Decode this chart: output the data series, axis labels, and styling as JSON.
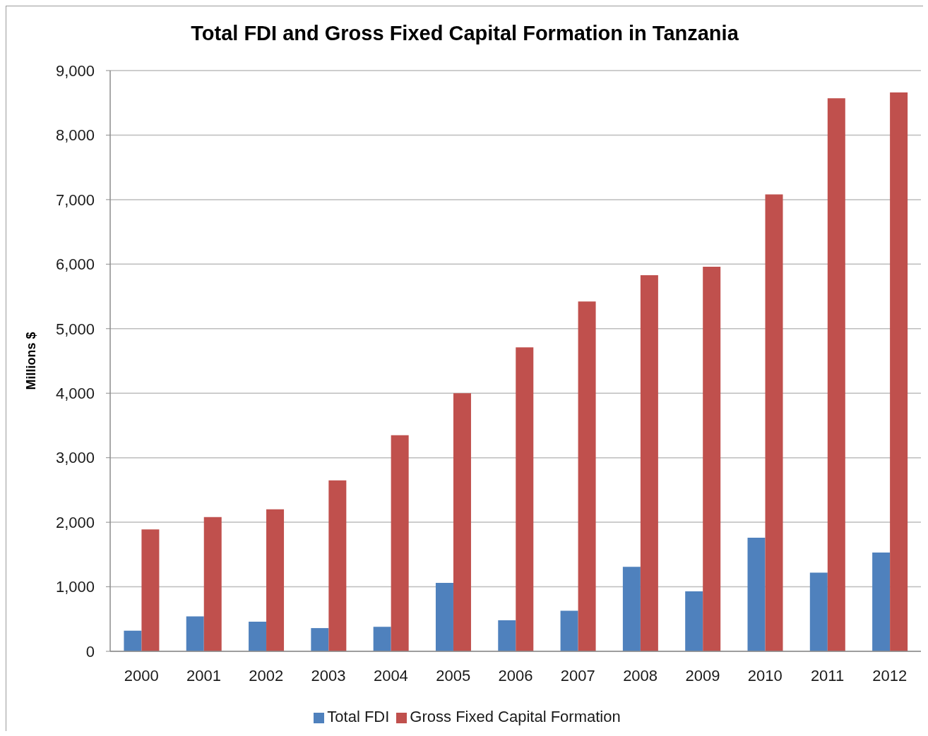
{
  "chart_data": {
    "type": "bar",
    "title": "Total FDI and Gross Fixed Capital Formation in Tanzania",
    "ylabel": "Millions $",
    "categories": [
      "2000",
      "2001",
      "2002",
      "2003",
      "2004",
      "2005",
      "2006",
      "2007",
      "2008",
      "2009",
      "2010",
      "2011",
      "2012"
    ],
    "series": [
      {
        "name": "Total FDI",
        "color": "#4f81bd",
        "values": [
          320,
          540,
          460,
          360,
          380,
          1060,
          480,
          630,
          1310,
          930,
          1760,
          1220,
          1530
        ]
      },
      {
        "name": "Gross Fixed Capital Formation",
        "color": "#c0504d",
        "values": [
          1890,
          2080,
          2200,
          2650,
          3350,
          4000,
          4710,
          5420,
          5830,
          5960,
          7080,
          8570,
          8660
        ]
      }
    ],
    "ylim": [
      0,
      9000
    ],
    "yticks": [
      0,
      {
        "value": 1000,
        "label": "1,000"
      },
      {
        "value": 2000,
        "label": "2,000"
      },
      {
        "value": 3000,
        "label": "3,000"
      },
      {
        "value": 4000,
        "label": "4,000"
      },
      {
        "value": 5000,
        "label": "5,000"
      },
      {
        "value": 6000,
        "label": "6,000"
      },
      {
        "value": 7000,
        "label": "7,000"
      },
      {
        "value": 8000,
        "label": "8,000"
      },
      {
        "value": 9000,
        "label": "9,000"
      }
    ],
    "grid": "y",
    "legend": "bottom"
  }
}
